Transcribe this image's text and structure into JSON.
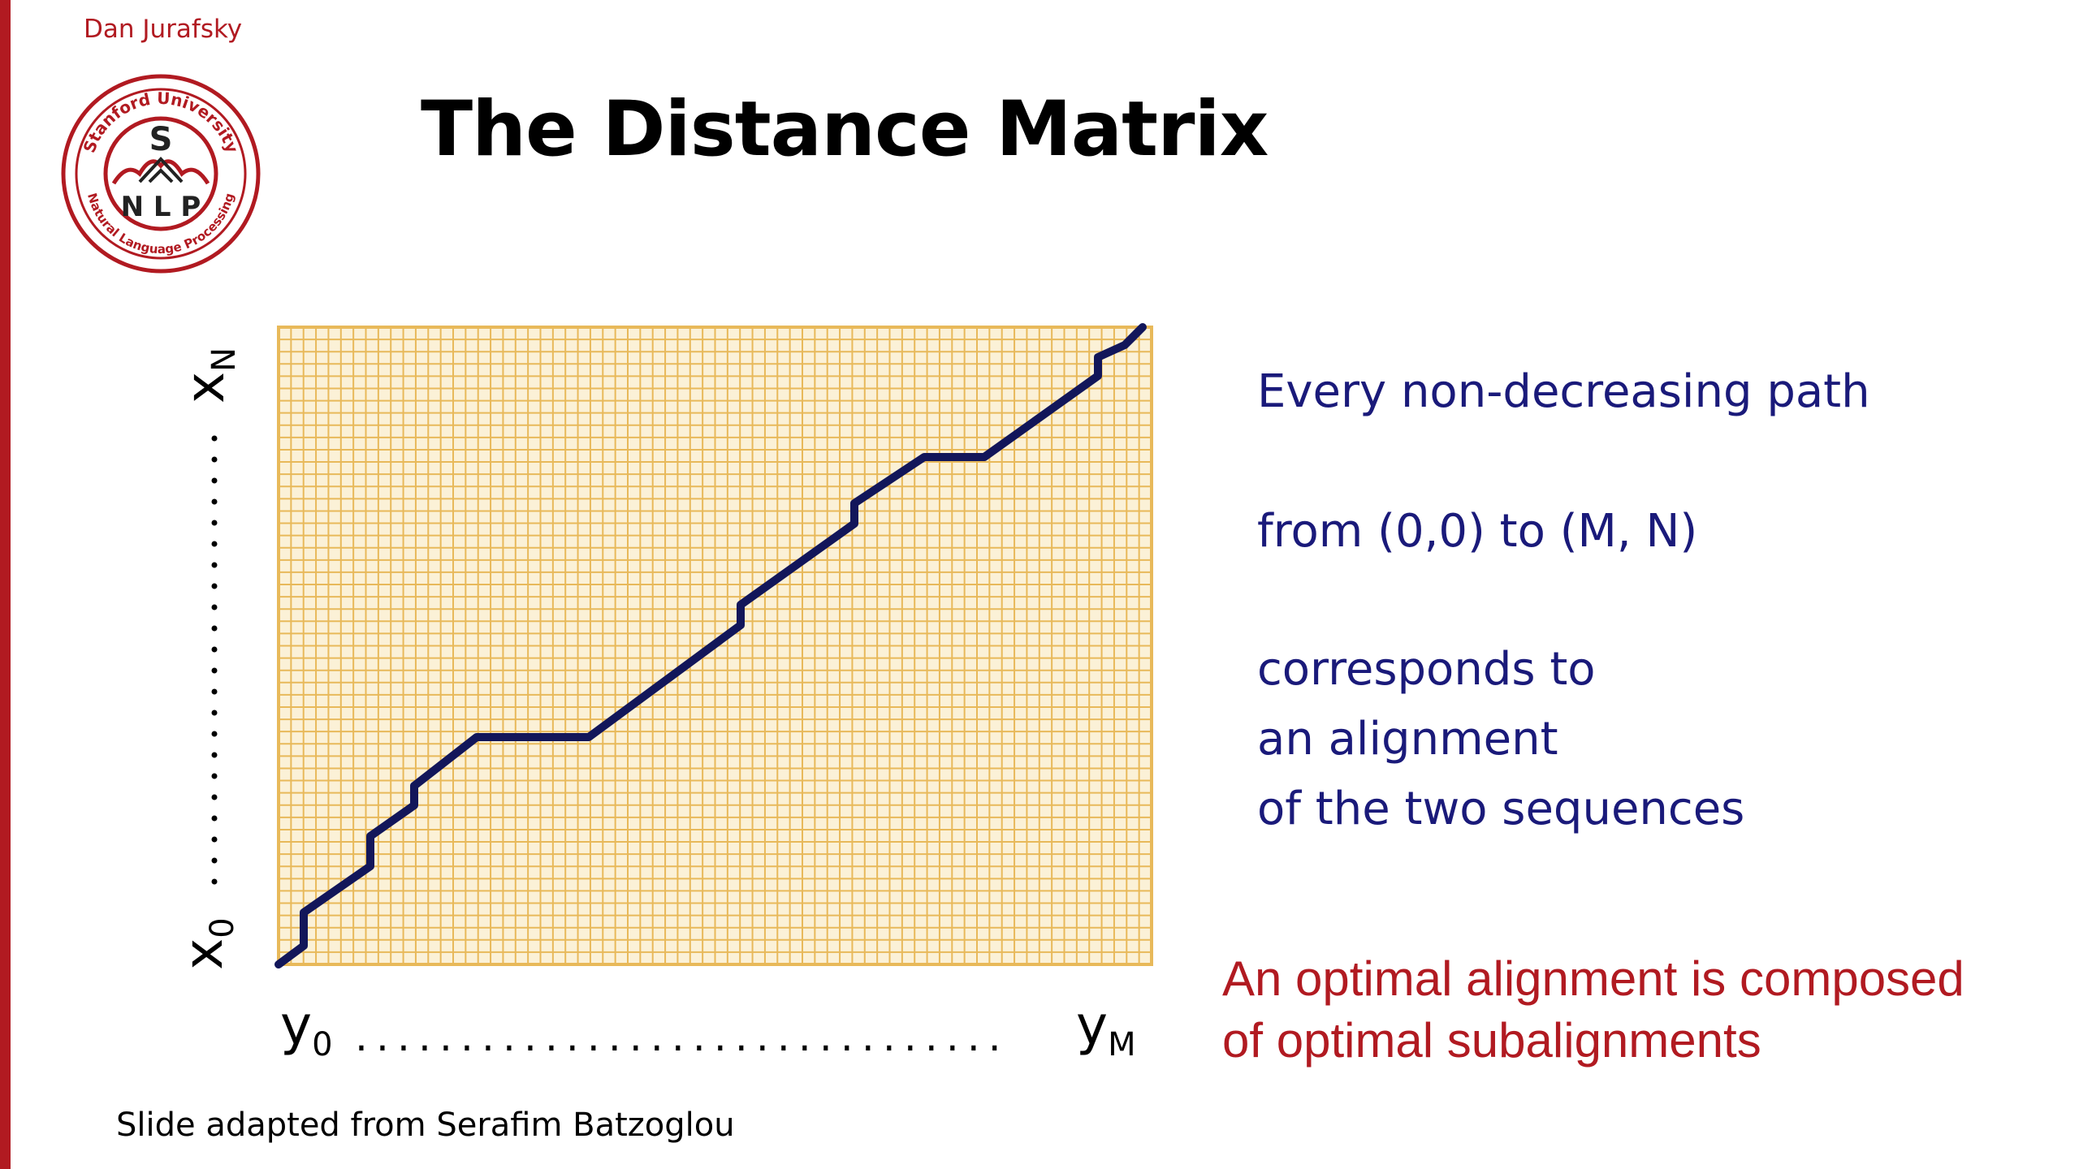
{
  "header": {
    "author": "Dan Jurafsky",
    "title": "The Distance Matrix"
  },
  "logo": {
    "ring_top": "Stanford University",
    "ring_bottom": "Natural Language Processing",
    "center_letter": "S",
    "center_word": "N L P",
    "color": "#b11a21"
  },
  "matrix": {
    "x_start_label": "x",
    "x_start_sub": "0",
    "x_end_label": "x",
    "x_end_sub": "N",
    "y_start_label": "y",
    "y_start_sub": "0",
    "y_end_label": "y",
    "y_end_sub": "M",
    "dots": "...............................",
    "grid_color": "#e8b95a",
    "grid_bg": "#fbf1d7",
    "path_color": "#12165a"
  },
  "explanation": {
    "line1": "Every non-decreasing path",
    "line2": "from (0,0) to (M, N)",
    "line3": "corresponds to",
    "line4": "an alignment",
    "line5": "of the two sequences"
  },
  "emphasis": {
    "line1": "An optimal alignment is composed",
    "line2": "of optimal subalignments"
  },
  "footer": {
    "credit": "Slide adapted from Serafim Batzoglou"
  }
}
